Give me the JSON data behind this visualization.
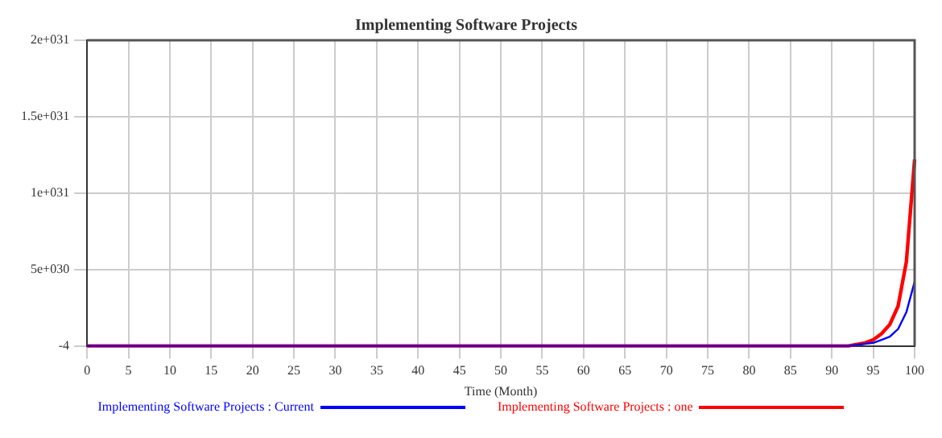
{
  "chart_data": {
    "type": "line",
    "title": "Implementing Software Projects",
    "xlabel": "Time (Month)",
    "xlim": [
      0,
      100
    ],
    "xticks": [
      0,
      5,
      10,
      15,
      20,
      25,
      30,
      35,
      40,
      45,
      50,
      55,
      60,
      65,
      70,
      75,
      80,
      85,
      90,
      95,
      100
    ],
    "ylim": [
      -4,
      2e+31
    ],
    "yticks": [
      {
        "value": -4,
        "label": "-4"
      },
      {
        "value": 5e+30,
        "label": "5e+030"
      },
      {
        "value": 1e+31,
        "label": "1e+031"
      },
      {
        "value": 1.5e+31,
        "label": "1.5e+031"
      },
      {
        "value": 2e+31,
        "label": "2e+031"
      }
    ],
    "grid": true,
    "legend": "bottom",
    "marker": "none",
    "line_style": "solid",
    "series": [
      {
        "name": "Implementing Software Projects : Current",
        "color": "#0000ff",
        "x": [
          0,
          92,
          95,
          96,
          97,
          98,
          99,
          100
        ],
        "values": [
          0,
          0,
          2e+29,
          4e+29,
          6e+29,
          1.1e+30,
          2.2e+30,
          4.2e+30
        ]
      },
      {
        "name": "Implementing Software Projects : one",
        "color": "#ff0000",
        "x": [
          0,
          92,
          94,
          95,
          96,
          97,
          98,
          99,
          100
        ],
        "values": [
          0,
          0,
          2e+29,
          4e+29,
          8e+29,
          1.4e+30,
          2.6e+30,
          5.5e+30,
          1.22e+31
        ]
      }
    ]
  }
}
